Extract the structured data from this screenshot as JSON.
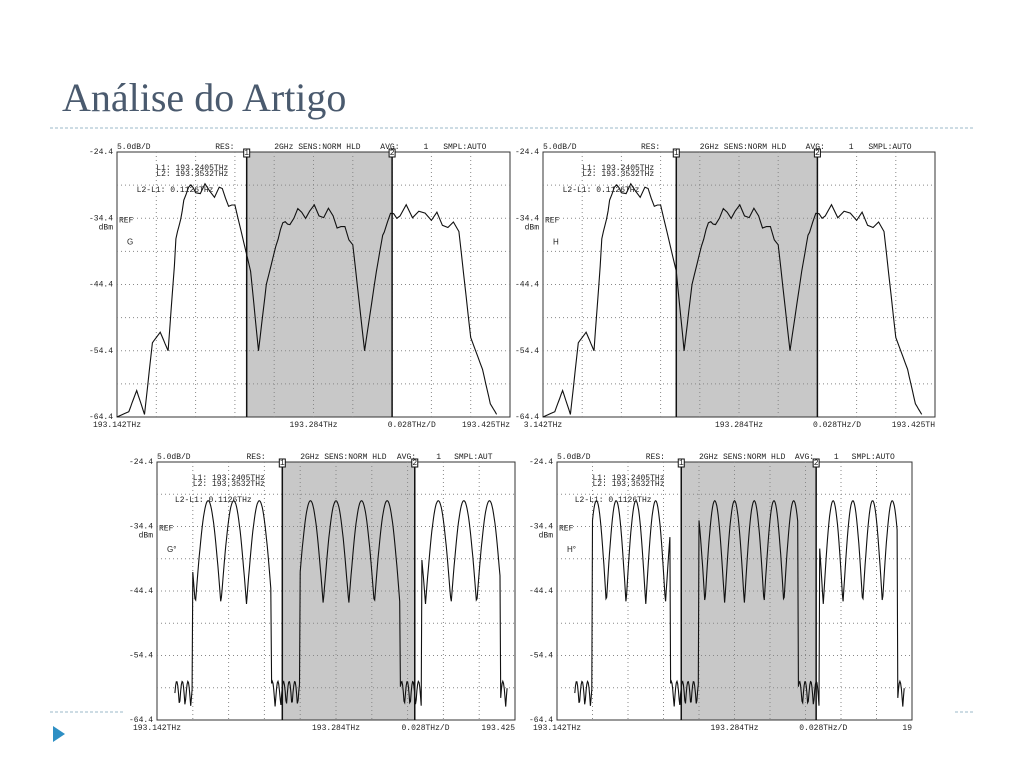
{
  "header": {
    "title": "Análise do Artigo"
  },
  "panels": [
    {
      "label": "G",
      "scale": "5.0dB/D",
      "res": "RES:",
      "sens": "2GHz SENS:NORM HLD",
      "avg_label": "AVG:",
      "avg": "1",
      "smpl": "SMPL:AUTO",
      "yticks": [
        "-24.4",
        "-34.4",
        "-44.4",
        "-54.4",
        "-64.4"
      ],
      "ref": "REF",
      "unit": "dBm",
      "markers": [
        "L1: 193.2405THz",
        "L2: 193.3532THz",
        "L2-L1:  0.1126THz"
      ],
      "marker_ids": [
        "1",
        "2"
      ],
      "xlabels": [
        "193.142THz",
        "193.284THz",
        "0.028THz/D",
        "193.425THz"
      ]
    },
    {
      "label": "H",
      "scale": "5.0dB/D",
      "res": "RES:",
      "sens": "2GHz SENS:NORM HLD",
      "avg_label": "AVG:",
      "avg": "1",
      "smpl": "SMPL:AUTO",
      "yticks": [
        "-24.4",
        "-34.4",
        "-44.4",
        "-54.4",
        "-64.4"
      ],
      "ref": "REF",
      "unit": "dBm",
      "markers": [
        "L1: 193.2405THz",
        "L2: 193.3532THz",
        "L2-L1:  0.1126THz"
      ],
      "marker_ids": [
        "1",
        "2"
      ],
      "xlabels": [
        "3.142THz",
        "193.284THz",
        "0.028THz/D",
        "193.425TH"
      ]
    },
    {
      "label": "G°",
      "scale": "5.0dB/D",
      "res": "RES:",
      "sens": "2GHz SENS:NORM HLD",
      "avg_label": "AVG:",
      "avg": "1",
      "smpl": "SMPL:AUT",
      "yticks": [
        "-24.4",
        "-34.4",
        "-44.4",
        "-54.4",
        "-64.4"
      ],
      "ref": "REF",
      "unit": "dBm",
      "markers": [
        "L1: 193.2405THz",
        "L2: 193.3532THz",
        "L2-L1:  0.1126THz"
      ],
      "marker_ids": [
        "1",
        "2"
      ],
      "xlabels": [
        "193.142THz",
        "193.284THz",
        "0.028THz/D",
        "193.425"
      ]
    },
    {
      "label": "H°",
      "scale": "5.0dB/D",
      "res": "RES:",
      "sens": "2GHz SENS:NORM HLD",
      "avg_label": "AVG:",
      "avg": "1",
      "smpl": "SMPL:AUTO",
      "yticks": [
        "-24.4",
        "-34.4",
        "-44.4",
        "-54.4",
        "-64.4"
      ],
      "ref": "REF",
      "unit": "dBm",
      "markers": [
        "L1: 193.2405THz",
        "L2: 193.3532THz",
        "L2-L1:  0.1126THz"
      ],
      "marker_ids": [
        "1",
        "2"
      ],
      "xlabels": [
        "193.142THz",
        "193.284THz",
        "0.028THz/D",
        "19"
      ]
    }
  ]
}
